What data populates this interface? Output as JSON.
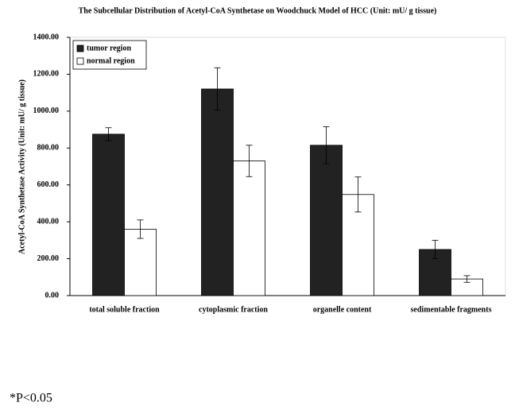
{
  "chart_data": {
    "type": "bar",
    "title": "The Subcellular Distribution of Acetyl-CoA Synthetase on Woodchuck Model of HCC (Unit: mU/ g tissue)",
    "y_label": "Acetyl-CoA Synthetase Activity (Unit: mU/ g tissue)",
    "categories": [
      "total soluble fraction",
      "cytoplasmic fraction",
      "organelle content",
      "sedimentable fragments"
    ],
    "series": [
      {
        "name": "tumor region",
        "color": "#222222",
        "values": [
          875,
          1120,
          815,
          250
        ],
        "errors": [
          35,
          115,
          100,
          50
        ]
      },
      {
        "name": "normal region",
        "color": "#ffffff",
        "values": [
          360,
          730,
          548,
          90
        ],
        "errors": [
          50,
          85,
          95,
          18
        ]
      }
    ],
    "ylim": [
      0,
      1400
    ],
    "yticks": [
      {
        "value": 0,
        "label": "0.00"
      },
      {
        "value": 200,
        "label": "200.00"
      },
      {
        "value": 400,
        "label": "400.00"
      },
      {
        "value": 600,
        "label": "600.00"
      },
      {
        "value": 800,
        "label": "800.00"
      },
      {
        "value": 1000,
        "label": "1000.00"
      },
      {
        "value": 1200,
        "label": "1200.00"
      },
      {
        "value": 1400,
        "label": "1400.00"
      }
    ],
    "legend": "upper left",
    "footnote": "*P<0.05"
  }
}
